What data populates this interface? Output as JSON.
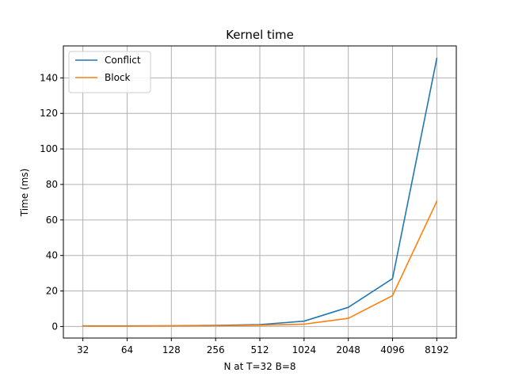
{
  "chart_data": {
    "type": "line",
    "title": "Kernel time",
    "xlabel": "N at T=32 B=8",
    "ylabel": "Time (ms)",
    "x_scale": "log2",
    "categories": [
      "32",
      "64",
      "128",
      "256",
      "512",
      "1024",
      "2048",
      "4096",
      "8192"
    ],
    "x": [
      32,
      64,
      128,
      256,
      512,
      1024,
      2048,
      4096,
      8192
    ],
    "ylim": [
      -6.5,
      158
    ],
    "yticks": [
      0,
      20,
      40,
      60,
      80,
      100,
      120,
      140
    ],
    "grid": true,
    "legend_position": "top-left",
    "series": [
      {
        "name": "Conflict",
        "color": "#1f77b4",
        "values": [
          0.3,
          0.3,
          0.4,
          0.6,
          1.1,
          3.0,
          10.8,
          27.0,
          151.0
        ]
      },
      {
        "name": "Block",
        "color": "#ff7f0e",
        "values": [
          0.2,
          0.2,
          0.3,
          0.4,
          0.7,
          1.3,
          4.6,
          17.4,
          70.5
        ]
      }
    ]
  }
}
